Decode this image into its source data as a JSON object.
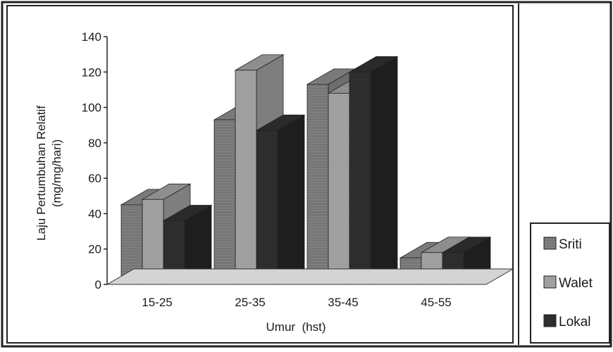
{
  "chart_data": {
    "type": "bar",
    "style": "3d-clustered",
    "categories": [
      "15-25",
      "25-35",
      "35-45",
      "45-55"
    ],
    "series": [
      {
        "name": "Sriti",
        "values": [
          45,
          93,
          113,
          15
        ]
      },
      {
        "name": "Walet",
        "values": [
          48,
          121,
          108,
          18
        ]
      },
      {
        "name": "Lokal",
        "values": [
          36,
          87,
          120,
          18
        ]
      }
    ],
    "xlabel": "Umur  (hst)",
    "ylabel_line1": "Laju Pertumbuhan Relatif",
    "ylabel_line2": "(mg/mg/hari)",
    "ylim": [
      0,
      140
    ],
    "yticks": [
      0,
      20,
      40,
      60,
      80,
      100,
      120,
      140
    ],
    "grid": false,
    "legend_position": "right",
    "colors": {
      "Sriti": "#8c8c8c",
      "Walet": "#9a9a9a",
      "Lokal": "#2e2e2e"
    }
  }
}
